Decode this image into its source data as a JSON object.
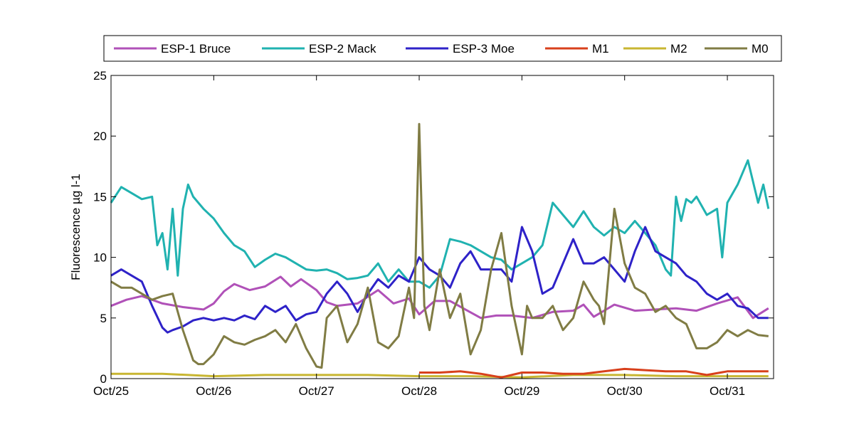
{
  "chart_data": {
    "type": "line",
    "title": "",
    "xlabel": "",
    "ylabel": "Fluorescence µg l-1",
    "ylim": [
      0,
      25
    ],
    "yticks": [
      "0",
      "5",
      "10",
      "15",
      "20",
      "25"
    ],
    "xlim": [
      0,
      6.45
    ],
    "xticks": [
      "Oct/25",
      "Oct/26",
      "Oct/27",
      "Oct/28",
      "Oct/29",
      "Oct/30",
      "Oct/31"
    ],
    "legend_position": "top",
    "grid": false,
    "series": [
      {
        "name": "ESP-1 Bruce",
        "color": "#b051b8",
        "x": [
          0.0,
          0.15,
          0.3,
          0.5,
          0.7,
          0.9,
          1.0,
          1.1,
          1.2,
          1.35,
          1.5,
          1.65,
          1.75,
          1.85,
          2.0,
          2.1,
          2.2,
          2.4,
          2.6,
          2.75,
          2.9,
          3.0,
          3.15,
          3.3,
          3.45,
          3.6,
          3.75,
          3.9,
          4.1,
          4.3,
          4.5,
          4.6,
          4.7,
          4.9,
          5.1,
          5.3,
          5.5,
          5.7,
          5.9,
          6.1,
          6.25,
          6.4
        ],
        "values": [
          6.0,
          6.5,
          6.8,
          6.2,
          5.9,
          5.7,
          6.2,
          7.2,
          7.8,
          7.3,
          7.6,
          8.4,
          7.6,
          8.2,
          7.3,
          6.3,
          6.0,
          6.2,
          7.3,
          6.2,
          6.6,
          5.3,
          6.4,
          6.4,
          5.7,
          5.0,
          5.2,
          5.2,
          5.0,
          5.5,
          5.6,
          6.1,
          5.1,
          6.1,
          5.6,
          5.7,
          5.8,
          5.6,
          6.2,
          6.7,
          5.0,
          5.8
        ]
      },
      {
        "name": "ESP-2 Mack",
        "color": "#20b2b0",
        "x": [
          0.0,
          0.1,
          0.2,
          0.3,
          0.4,
          0.45,
          0.5,
          0.55,
          0.6,
          0.65,
          0.7,
          0.75,
          0.8,
          0.9,
          1.0,
          1.1,
          1.2,
          1.3,
          1.4,
          1.5,
          1.6,
          1.7,
          1.8,
          1.9,
          2.0,
          2.1,
          2.2,
          2.3,
          2.4,
          2.5,
          2.6,
          2.7,
          2.8,
          2.9,
          3.0,
          3.1,
          3.2,
          3.3,
          3.4,
          3.5,
          3.6,
          3.7,
          3.8,
          3.9,
          4.0,
          4.1,
          4.2,
          4.3,
          4.4,
          4.5,
          4.6,
          4.7,
          4.8,
          4.9,
          5.0,
          5.1,
          5.2,
          5.3,
          5.4,
          5.45,
          5.5,
          5.55,
          5.6,
          5.65,
          5.7,
          5.8,
          5.9,
          5.95,
          6.0,
          6.1,
          6.2,
          6.3,
          6.35,
          6.4
        ],
        "values": [
          14.5,
          15.8,
          15.3,
          14.8,
          15.0,
          11.0,
          12.0,
          9.0,
          14.0,
          8.5,
          14.0,
          16.0,
          15.0,
          14.0,
          13.2,
          12.0,
          11.0,
          10.5,
          9.2,
          9.8,
          10.3,
          10.0,
          9.5,
          9.0,
          8.9,
          9.0,
          8.7,
          8.2,
          8.3,
          8.5,
          9.5,
          8.0,
          9.0,
          8.0,
          8.0,
          7.5,
          8.5,
          11.5,
          11.3,
          11.0,
          10.5,
          10.0,
          9.8,
          9.0,
          9.5,
          10.0,
          11.0,
          14.5,
          13.5,
          12.5,
          13.8,
          12.5,
          11.8,
          12.5,
          12.0,
          13.0,
          12.0,
          11.0,
          9.0,
          8.5,
          15.0,
          13.0,
          14.8,
          14.5,
          15.0,
          13.5,
          14.0,
          10.0,
          14.5,
          16.0,
          18.0,
          14.5,
          16.0,
          14.0
        ]
      },
      {
        "name": "ESP-3 Moe",
        "color": "#2e22c8",
        "x": [
          0.0,
          0.1,
          0.2,
          0.3,
          0.4,
          0.5,
          0.55,
          0.6,
          0.7,
          0.8,
          0.9,
          1.0,
          1.1,
          1.2,
          1.3,
          1.4,
          1.5,
          1.6,
          1.7,
          1.8,
          1.9,
          2.0,
          2.1,
          2.2,
          2.3,
          2.4,
          2.5,
          2.6,
          2.7,
          2.8,
          2.9,
          3.0,
          3.1,
          3.2,
          3.3,
          3.4,
          3.5,
          3.6,
          3.7,
          3.8,
          3.9,
          4.0,
          4.1,
          4.2,
          4.3,
          4.4,
          4.5,
          4.6,
          4.7,
          4.8,
          4.9,
          5.0,
          5.1,
          5.2,
          5.3,
          5.4,
          5.5,
          5.6,
          5.7,
          5.8,
          5.9,
          6.0,
          6.1,
          6.2,
          6.3,
          6.4
        ],
        "values": [
          8.5,
          9.0,
          8.5,
          8.0,
          6.0,
          4.2,
          3.8,
          4.0,
          4.3,
          4.8,
          5.0,
          4.8,
          5.0,
          4.8,
          5.2,
          4.9,
          6.0,
          5.5,
          6.0,
          4.8,
          5.3,
          5.5,
          7.0,
          8.0,
          7.0,
          5.5,
          7.0,
          8.2,
          7.5,
          8.5,
          8.0,
          10.0,
          9.0,
          8.5,
          7.5,
          9.5,
          10.5,
          9.0,
          9.0,
          9.0,
          8.0,
          12.5,
          10.5,
          7.0,
          7.5,
          9.5,
          11.5,
          9.5,
          9.5,
          10.0,
          9.0,
          8.0,
          10.5,
          12.5,
          10.5,
          10.0,
          9.5,
          8.5,
          8.0,
          7.0,
          6.5,
          7.0,
          6.0,
          5.8,
          5.0,
          5.0
        ]
      },
      {
        "name": "M1",
        "color": "#d8401c",
        "x": [
          3.0,
          3.2,
          3.4,
          3.6,
          3.8,
          4.0,
          4.2,
          4.4,
          4.6,
          4.8,
          5.0,
          5.2,
          5.4,
          5.6,
          5.8,
          6.0,
          6.2,
          6.4
        ],
        "values": [
          0.5,
          0.5,
          0.6,
          0.4,
          0.1,
          0.5,
          0.5,
          0.4,
          0.4,
          0.6,
          0.8,
          0.7,
          0.6,
          0.6,
          0.3,
          0.6,
          0.6,
          0.6
        ]
      },
      {
        "name": "M2",
        "color": "#c8b632",
        "x": [
          0.0,
          0.5,
          1.0,
          1.5,
          2.0,
          2.5,
          3.0,
          3.5,
          4.0,
          4.5,
          5.0,
          5.5,
          6.0,
          6.4
        ],
        "values": [
          0.4,
          0.4,
          0.2,
          0.3,
          0.3,
          0.3,
          0.2,
          0.2,
          0.1,
          0.3,
          0.3,
          0.2,
          0.2,
          0.2
        ]
      },
      {
        "name": "M0",
        "color": "#807c44",
        "x": [
          0.0,
          0.1,
          0.2,
          0.3,
          0.4,
          0.5,
          0.6,
          0.7,
          0.8,
          0.85,
          0.9,
          1.0,
          1.1,
          1.2,
          1.3,
          1.4,
          1.5,
          1.6,
          1.7,
          1.8,
          1.9,
          2.0,
          2.05,
          2.1,
          2.2,
          2.3,
          2.4,
          2.5,
          2.6,
          2.7,
          2.8,
          2.9,
          2.95,
          3.0,
          3.05,
          3.1,
          3.2,
          3.3,
          3.4,
          3.5,
          3.6,
          3.7,
          3.8,
          3.9,
          4.0,
          4.05,
          4.1,
          4.2,
          4.3,
          4.4,
          4.5,
          4.6,
          4.7,
          4.75,
          4.8,
          4.9,
          5.0,
          5.1,
          5.2,
          5.3,
          5.4,
          5.5,
          5.6,
          5.7,
          5.8,
          5.9,
          6.0,
          6.1,
          6.2,
          6.3,
          6.4
        ],
        "values": [
          8.0,
          7.5,
          7.5,
          7.0,
          6.5,
          6.8,
          7.0,
          4.0,
          1.5,
          1.2,
          1.2,
          2.0,
          3.5,
          3.0,
          2.8,
          3.2,
          3.5,
          4.0,
          3.0,
          4.5,
          2.5,
          1.0,
          0.9,
          5.0,
          6.0,
          3.0,
          4.5,
          7.5,
          3.0,
          2.5,
          3.5,
          7.5,
          5.0,
          21.0,
          6.0,
          4.0,
          9.0,
          5.0,
          7.0,
          2.0,
          4.0,
          9.0,
          12.0,
          6.0,
          2.0,
          6.0,
          5.0,
          5.0,
          6.0,
          4.0,
          5.0,
          8.0,
          6.5,
          6.0,
          4.5,
          14.0,
          9.5,
          7.5,
          7.0,
          5.5,
          6.0,
          5.0,
          4.5,
          2.5,
          2.5,
          3.0,
          4.0,
          3.5,
          4.0,
          3.6,
          3.5
        ]
      }
    ]
  }
}
